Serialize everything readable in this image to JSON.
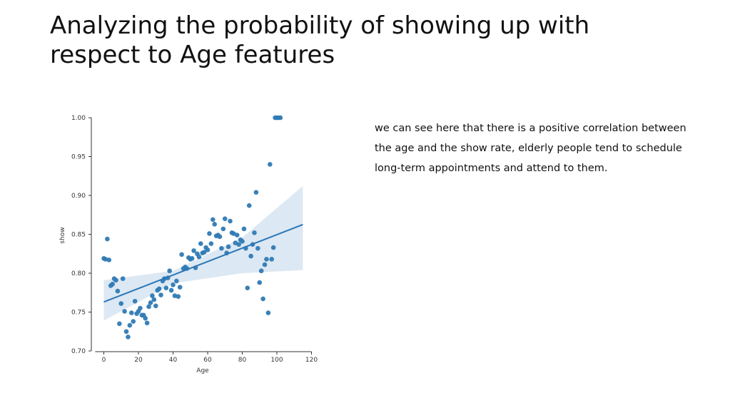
{
  "slide": {
    "title_lines": [
      "Analyzing the probability of showing up with",
      "respect to  Age features"
    ],
    "description_lines": [
      "we can see here that there is a positive correlation between",
      "the age and the show rate, elderly people tend to schedule",
      "long-term appointments and attend to them."
    ]
  },
  "colors": {
    "point": "#2f7ab4",
    "regression_line": "#2a76b8",
    "confidence_band": "#dce8f3",
    "axis": "#333333"
  },
  "chart_data": {
    "type": "scatter",
    "title": "",
    "xlabel": "Age",
    "ylabel": "show",
    "xlim": [
      -5,
      120
    ],
    "ylim": [
      0.7,
      1.0
    ],
    "x_ticks": [
      0,
      20,
      40,
      60,
      80,
      100,
      120
    ],
    "y_ticks": [
      0.7,
      0.75,
      0.8,
      0.85,
      0.9,
      0.95,
      1.0
    ],
    "x_tick_labels": [
      "0",
      "20",
      "40",
      "60",
      "80",
      "100",
      "120"
    ],
    "y_tick_labels": [
      "0.70",
      "0.75",
      "0.80",
      "0.85",
      "0.90",
      "0.95",
      "1.00"
    ],
    "grid": false,
    "points": [
      [
        0,
        0.819
      ],
      [
        1,
        0.818
      ],
      [
        2,
        0.844
      ],
      [
        3,
        0.817
      ],
      [
        4,
        0.784
      ],
      [
        5,
        0.786
      ],
      [
        6,
        0.793
      ],
      [
        7,
        0.791
      ],
      [
        8,
        0.777
      ],
      [
        9,
        0.735
      ],
      [
        10,
        0.761
      ],
      [
        11,
        0.793
      ],
      [
        12,
        0.751
      ],
      [
        13,
        0.725
      ],
      [
        14,
        0.718
      ],
      [
        15,
        0.733
      ],
      [
        16,
        0.749
      ],
      [
        17,
        0.738
      ],
      [
        18,
        0.764
      ],
      [
        19,
        0.748
      ],
      [
        20,
        0.751
      ],
      [
        21,
        0.755
      ],
      [
        22,
        0.746
      ],
      [
        23,
        0.746
      ],
      [
        24,
        0.742
      ],
      [
        25,
        0.736
      ],
      [
        26,
        0.757
      ],
      [
        27,
        0.762
      ],
      [
        28,
        0.771
      ],
      [
        29,
        0.766
      ],
      [
        30,
        0.758
      ],
      [
        31,
        0.778
      ],
      [
        32,
        0.78
      ],
      [
        33,
        0.772
      ],
      [
        34,
        0.79
      ],
      [
        35,
        0.793
      ],
      [
        36,
        0.781
      ],
      [
        37,
        0.794
      ],
      [
        38,
        0.803
      ],
      [
        39,
        0.778
      ],
      [
        40,
        0.785
      ],
      [
        41,
        0.771
      ],
      [
        42,
        0.79
      ],
      [
        43,
        0.77
      ],
      [
        44,
        0.782
      ],
      [
        45,
        0.824
      ],
      [
        46,
        0.806
      ],
      [
        47,
        0.808
      ],
      [
        48,
        0.806
      ],
      [
        49,
        0.82
      ],
      [
        50,
        0.818
      ],
      [
        51,
        0.819
      ],
      [
        52,
        0.829
      ],
      [
        53,
        0.807
      ],
      [
        54,
        0.825
      ],
      [
        55,
        0.821
      ],
      [
        56,
        0.838
      ],
      [
        57,
        0.826
      ],
      [
        58,
        0.827
      ],
      [
        59,
        0.833
      ],
      [
        60,
        0.83
      ],
      [
        61,
        0.851
      ],
      [
        62,
        0.838
      ],
      [
        63,
        0.869
      ],
      [
        64,
        0.863
      ],
      [
        65,
        0.848
      ],
      [
        66,
        0.849
      ],
      [
        67,
        0.847
      ],
      [
        68,
        0.832
      ],
      [
        69,
        0.857
      ],
      [
        70,
        0.87
      ],
      [
        71,
        0.826
      ],
      [
        72,
        0.834
      ],
      [
        73,
        0.867
      ],
      [
        74,
        0.852
      ],
      [
        75,
        0.851
      ],
      [
        76,
        0.839
      ],
      [
        77,
        0.849
      ],
      [
        78,
        0.837
      ],
      [
        79,
        0.843
      ],
      [
        80,
        0.841
      ],
      [
        81,
        0.857
      ],
      [
        82,
        0.832
      ],
      [
        83,
        0.781
      ],
      [
        84,
        0.887
      ],
      [
        85,
        0.822
      ],
      [
        86,
        0.837
      ],
      [
        87,
        0.852
      ],
      [
        88,
        0.904
      ],
      [
        89,
        0.832
      ],
      [
        90,
        0.788
      ],
      [
        91,
        0.803
      ],
      [
        92,
        0.767
      ],
      [
        93,
        0.811
      ],
      [
        94,
        0.818
      ],
      [
        95,
        0.749
      ],
      [
        96,
        0.94
      ],
      [
        97,
        0.818
      ],
      [
        98,
        0.833
      ],
      [
        99,
        1.0
      ],
      [
        100,
        1.0
      ],
      [
        101,
        1.0
      ],
      [
        102,
        1.0
      ]
    ],
    "regression": {
      "x_range": [
        0,
        115
      ],
      "intercept": 0.763,
      "slope": 0.000866
    },
    "confidence_band": {
      "x": [
        0,
        40,
        80,
        115
      ],
      "lower": [
        0.739,
        0.787,
        0.8,
        0.804
      ],
      "upper": [
        0.791,
        0.803,
        0.846,
        0.912
      ]
    }
  }
}
